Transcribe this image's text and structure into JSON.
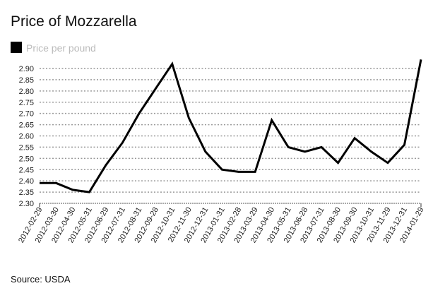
{
  "chart_data": {
    "type": "line",
    "title": "Price of Mozzarella",
    "legend": [
      {
        "label": "Price per pound",
        "color": "#000000"
      }
    ],
    "legend_placement": "top-left",
    "source": "Source: USDA",
    "xlabel": "",
    "ylabel": "",
    "ylim": [
      2.3,
      2.9
    ],
    "yticks": [
      "2.30",
      "2.35",
      "2.40",
      "2.45",
      "2.50",
      "2.55",
      "2.60",
      "2.65",
      "2.70",
      "2.75",
      "2.80",
      "2.85",
      "2.90"
    ],
    "grid": true,
    "x": [
      "2012-02-29",
      "2012-03-30",
      "2012-04-30",
      "2012-05-31",
      "2012-06-29",
      "2012-07-31",
      "2012-08-31",
      "2012-09-28",
      "2012-10-31",
      "2012-11-30",
      "2012-12-31",
      "2013-01-31",
      "2013-02-28",
      "2013-03-29",
      "2013-04-30",
      "2013-05-31",
      "2013-06-28",
      "2013-07-31",
      "2013-08-30",
      "2013-09-30",
      "2013-10-31",
      "2013-11-29",
      "2013-12-31",
      "2014-01-29"
    ],
    "series": [
      {
        "name": "Price per pound",
        "color": "#000000",
        "values": [
          2.39,
          2.39,
          2.36,
          2.35,
          2.47,
          2.57,
          2.7,
          2.81,
          2.92,
          2.68,
          2.53,
          2.45,
          2.44,
          2.44,
          2.67,
          2.55,
          2.53,
          2.55,
          2.48,
          2.59,
          2.53,
          2.48,
          2.56,
          2.94
        ]
      }
    ]
  }
}
